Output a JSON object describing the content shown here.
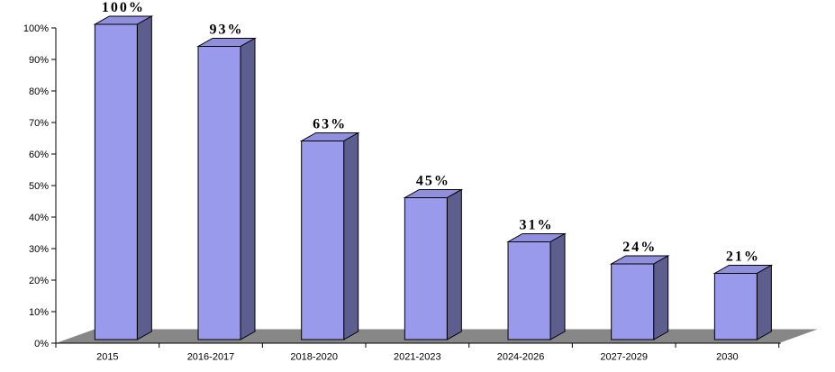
{
  "chart_data": {
    "type": "bar",
    "projection": "3d-column",
    "title": "",
    "xlabel": "",
    "ylabel": "",
    "categories": [
      "2015",
      "2016-2017",
      "2018-2020",
      "2021-2023",
      "2024-2026",
      "2027-2029",
      "2030"
    ],
    "values": [
      100,
      93,
      63,
      45,
      31,
      24,
      21
    ],
    "value_labels": [
      "100%",
      "93%",
      "63%",
      "45%",
      "31%",
      "24%",
      "21%"
    ],
    "y_axis": {
      "tick_labels": [
        "0%",
        "10%",
        "20%",
        "30%",
        "40%",
        "50%",
        "60%",
        "70%",
        "80%",
        "90%",
        "100%"
      ],
      "min": 0,
      "max": 100,
      "step": 10
    },
    "grid": "off",
    "legend": "none",
    "colors": {
      "bar_front": "#9A9AEC",
      "bar_top": "#8F8FDE",
      "bar_side": "#5E5E8E",
      "bar_outline": "#000000",
      "floor": "#878787",
      "axis": "#000000",
      "text": "#000000",
      "background": "#FFFFFF"
    }
  }
}
